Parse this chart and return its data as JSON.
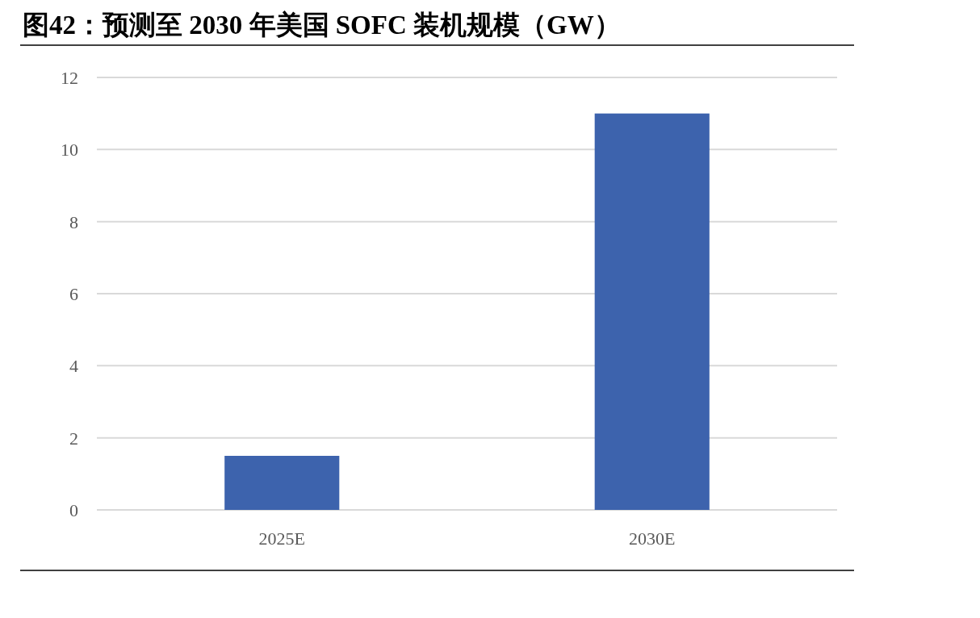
{
  "chart_data": {
    "type": "bar",
    "title": "图42：预测至 2030 年美国 SOFC 装机规模（GW）",
    "categories": [
      "2025E",
      "2030E"
    ],
    "values": [
      1.5,
      11
    ],
    "color": "#3d63ad",
    "ylim": [
      0,
      12
    ],
    "yticks": [
      0,
      2,
      4,
      6,
      8,
      10,
      12
    ],
    "grid": "y"
  }
}
